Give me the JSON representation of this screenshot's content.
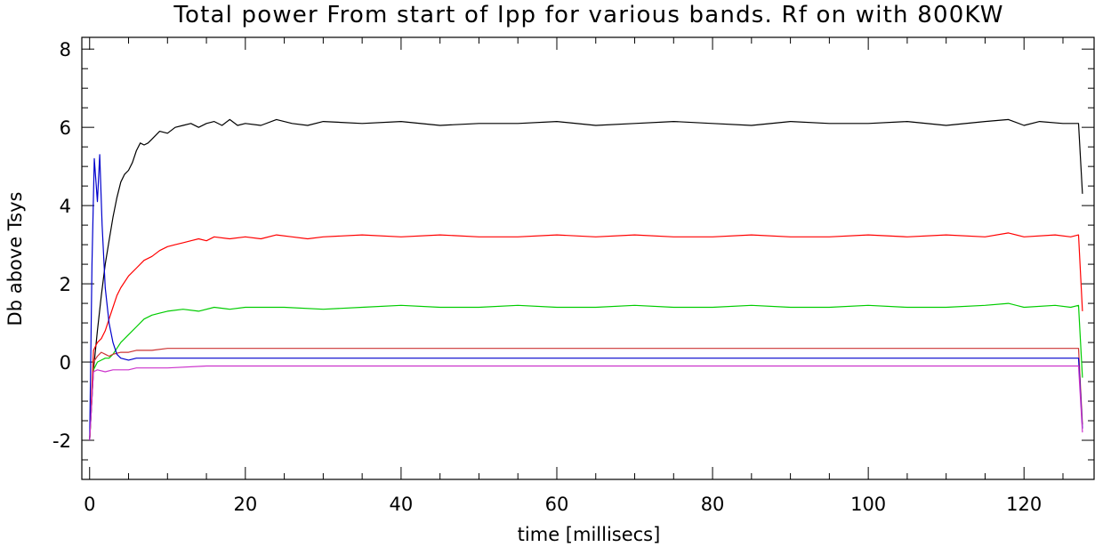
{
  "chart_data": {
    "type": "line",
    "title": "Total power From start of Ipp for various bands. Rf on with 800KW",
    "xlabel": "time [millisecs]",
    "ylabel": "Db above Tsys",
    "xlim": [
      -1,
      129
    ],
    "ylim": [
      -3,
      8.3
    ],
    "x_ticks": [
      0,
      20,
      40,
      60,
      80,
      100,
      120
    ],
    "x_tick_labels": [
      "0",
      "20",
      "40",
      "60",
      "80",
      "100",
      "120"
    ],
    "y_ticks": [
      -2,
      0,
      2,
      4,
      6,
      8
    ],
    "y_tick_labels": [
      "-2",
      "0",
      "2",
      "4",
      "6",
      "8"
    ],
    "x_minor_step": 5,
    "y_minor_step": 0.5,
    "grid": false,
    "legend": "none",
    "series": [
      {
        "color": "#000000",
        "x": [
          0,
          0.5,
          1,
          1.5,
          2,
          2.5,
          3,
          3.5,
          4,
          4.5,
          5,
          5.5,
          6,
          6.5,
          7,
          7.5,
          8,
          9,
          10,
          11,
          12,
          13,
          14,
          15,
          16,
          17,
          18,
          19,
          20,
          22,
          24,
          26,
          28,
          30,
          35,
          40,
          45,
          50,
          55,
          60,
          65,
          70,
          75,
          80,
          85,
          90,
          95,
          100,
          105,
          110,
          115,
          118,
          120,
          122,
          125,
          126,
          127,
          127.5
        ],
        "y": [
          -2.0,
          -0.2,
          0.8,
          1.7,
          2.5,
          3.1,
          3.7,
          4.2,
          4.6,
          4.8,
          4.9,
          5.1,
          5.4,
          5.6,
          5.55,
          5.6,
          5.7,
          5.9,
          5.85,
          6.0,
          6.05,
          6.1,
          6.0,
          6.1,
          6.15,
          6.05,
          6.2,
          6.05,
          6.1,
          6.05,
          6.2,
          6.1,
          6.05,
          6.15,
          6.1,
          6.15,
          6.05,
          6.1,
          6.1,
          6.15,
          6.05,
          6.1,
          6.15,
          6.1,
          6.05,
          6.15,
          6.1,
          6.1,
          6.15,
          6.05,
          6.15,
          6.2,
          6.05,
          6.15,
          6.1,
          6.1,
          6.1,
          4.3
        ]
      },
      {
        "color": "#ff0000",
        "x": [
          0,
          0.5,
          1,
          1.5,
          2,
          2.5,
          3,
          3.5,
          4,
          5,
          6,
          7,
          8,
          9,
          10,
          11,
          12,
          13,
          14,
          15,
          16,
          18,
          20,
          22,
          24,
          26,
          28,
          30,
          35,
          40,
          45,
          50,
          55,
          60,
          65,
          70,
          75,
          80,
          85,
          90,
          95,
          100,
          105,
          110,
          115,
          118,
          120,
          124,
          126,
          127,
          127.5
        ],
        "y": [
          -2.0,
          0.3,
          0.5,
          0.6,
          0.8,
          1.1,
          1.4,
          1.7,
          1.9,
          2.2,
          2.4,
          2.6,
          2.7,
          2.85,
          2.95,
          3.0,
          3.05,
          3.1,
          3.15,
          3.1,
          3.2,
          3.15,
          3.2,
          3.15,
          3.25,
          3.2,
          3.15,
          3.2,
          3.25,
          3.2,
          3.25,
          3.2,
          3.2,
          3.25,
          3.2,
          3.25,
          3.2,
          3.2,
          3.25,
          3.2,
          3.2,
          3.25,
          3.2,
          3.25,
          3.2,
          3.3,
          3.2,
          3.25,
          3.2,
          3.25,
          1.3
        ]
      },
      {
        "color": "#00cc00",
        "x": [
          0,
          0.5,
          1,
          1.5,
          2,
          2.5,
          3,
          3.5,
          4,
          5,
          6,
          7,
          8,
          9,
          10,
          12,
          14,
          16,
          18,
          20,
          25,
          30,
          35,
          40,
          45,
          50,
          55,
          60,
          65,
          70,
          75,
          80,
          85,
          90,
          95,
          100,
          105,
          110,
          115,
          118,
          120,
          124,
          126,
          127,
          127.5
        ],
        "y": [
          -2.0,
          -0.2,
          0.0,
          0.05,
          0.1,
          0.1,
          0.2,
          0.35,
          0.5,
          0.7,
          0.9,
          1.1,
          1.2,
          1.25,
          1.3,
          1.35,
          1.3,
          1.4,
          1.35,
          1.4,
          1.4,
          1.35,
          1.4,
          1.45,
          1.4,
          1.4,
          1.45,
          1.4,
          1.4,
          1.45,
          1.4,
          1.4,
          1.45,
          1.4,
          1.4,
          1.45,
          1.4,
          1.4,
          1.45,
          1.5,
          1.4,
          1.45,
          1.4,
          1.45,
          -0.4
        ]
      },
      {
        "color": "#cc3333",
        "x": [
          0,
          0.5,
          1,
          1.5,
          2,
          2.5,
          3,
          4,
          5,
          6,
          8,
          10,
          15,
          20,
          25,
          30,
          35,
          40,
          45,
          50,
          55,
          60,
          65,
          70,
          75,
          80,
          85,
          90,
          95,
          100,
          105,
          110,
          115,
          120,
          125,
          127,
          127.5
        ],
        "y": [
          -2.0,
          0.0,
          0.15,
          0.25,
          0.2,
          0.15,
          0.2,
          0.25,
          0.25,
          0.3,
          0.3,
          0.35,
          0.35,
          0.35,
          0.35,
          0.35,
          0.35,
          0.35,
          0.35,
          0.35,
          0.35,
          0.35,
          0.35,
          0.35,
          0.35,
          0.35,
          0.35,
          0.35,
          0.35,
          0.35,
          0.35,
          0.35,
          0.35,
          0.35,
          0.35,
          0.35,
          -1.6
        ]
      },
      {
        "color": "#0000cc",
        "x": [
          0,
          0.3,
          0.6,
          1,
          1.3,
          1.6,
          2,
          2.5,
          3,
          3.5,
          4,
          5,
          6,
          8,
          10,
          15,
          20,
          25,
          30,
          35,
          40,
          45,
          50,
          55,
          60,
          65,
          70,
          75,
          80,
          85,
          90,
          95,
          100,
          105,
          110,
          115,
          120,
          125,
          127,
          127.5
        ],
        "y": [
          -2.0,
          2.5,
          5.2,
          4.1,
          5.3,
          3.5,
          1.9,
          1.0,
          0.5,
          0.2,
          0.1,
          0.05,
          0.1,
          0.1,
          0.1,
          0.1,
          0.1,
          0.1,
          0.1,
          0.1,
          0.1,
          0.1,
          0.1,
          0.1,
          0.1,
          0.1,
          0.1,
          0.1,
          0.1,
          0.1,
          0.1,
          0.1,
          0.1,
          0.1,
          0.1,
          0.1,
          0.1,
          0.1,
          0.1,
          -1.7
        ]
      },
      {
        "color": "#cc33cc",
        "x": [
          0,
          0.5,
          1,
          2,
          3,
          4,
          5,
          6,
          8,
          10,
          15,
          20,
          25,
          30,
          35,
          40,
          45,
          50,
          55,
          60,
          65,
          70,
          75,
          80,
          85,
          90,
          95,
          100,
          105,
          110,
          115,
          120,
          125,
          127,
          127.5
        ],
        "y": [
          -2.0,
          -0.25,
          -0.2,
          -0.25,
          -0.2,
          -0.2,
          -0.2,
          -0.15,
          -0.15,
          -0.15,
          -0.1,
          -0.1,
          -0.1,
          -0.1,
          -0.1,
          -0.1,
          -0.1,
          -0.1,
          -0.1,
          -0.1,
          -0.1,
          -0.1,
          -0.1,
          -0.1,
          -0.1,
          -0.1,
          -0.1,
          -0.1,
          -0.1,
          -0.1,
          -0.1,
          -0.1,
          -0.1,
          -0.1,
          -1.8
        ]
      }
    ]
  }
}
